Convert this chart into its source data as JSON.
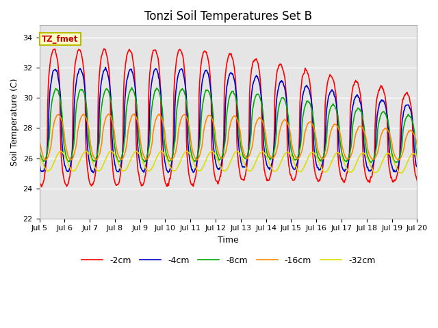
{
  "title": "Tonzi Soil Temperatures Set B",
  "xlabel": "Time",
  "ylabel": "Soil Temperature (C)",
  "ylim": [
    22,
    34.8
  ],
  "yticks": [
    22,
    24,
    26,
    28,
    30,
    32,
    34
  ],
  "background_color": "#e5e5e5",
  "annotation_text": "TZ_fmet",
  "annotation_bg": "#ffffcc",
  "annotation_border": "#bbbb00",
  "lines": [
    {
      "label": "-2cm",
      "color": "#ff0000",
      "lw": 1.2
    },
    {
      "label": "-4cm",
      "color": "#0000cc",
      "lw": 1.2
    },
    {
      "label": "-8cm",
      "color": "#00aa00",
      "lw": 1.2
    },
    {
      "label": "-16cm",
      "color": "#ff8800",
      "lw": 1.2
    },
    {
      "label": "-32cm",
      "color": "#dddd00",
      "lw": 1.2
    }
  ],
  "x_tick_days": [
    5,
    6,
    7,
    8,
    9,
    10,
    11,
    12,
    13,
    14,
    15,
    16,
    17,
    18,
    19,
    20
  ],
  "x_tick_labels": [
    "Jul 5",
    "Jul 6",
    "Jul 7",
    "Jul 8",
    "Jul 9",
    "Jul 10",
    "Jul 11",
    "Jul 12",
    "Jul 13",
    "Jul 14",
    "Jul 15",
    "Jul 16",
    "Jul 17",
    "Jul 18",
    "Jul 19",
    "Jul 20"
  ]
}
